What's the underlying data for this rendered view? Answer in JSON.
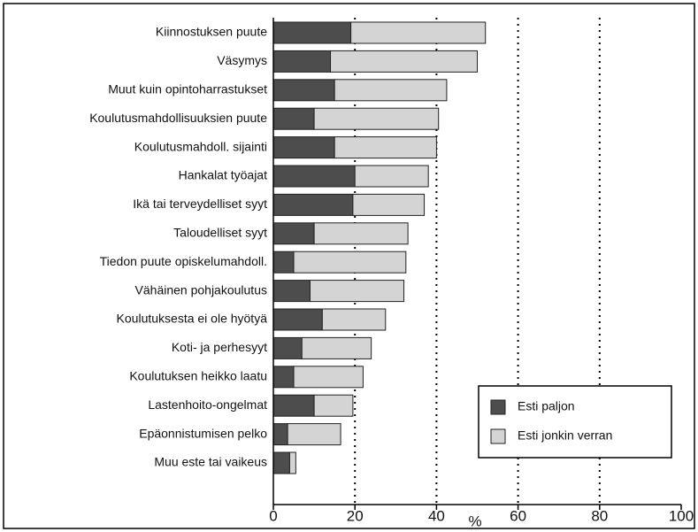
{
  "chart_data": {
    "type": "stacked_barh",
    "categories": [
      "Kiinnostuksen puute",
      "Väsymys",
      "Muut kuin opintoharrastukset",
      "Koulutusmahdollisuuksien puute",
      "Koulutusmahdoll. sijainti",
      "Hankalat työajat",
      "Ikä tai terveydelliset syyt",
      "Taloudelliset syyt",
      "Tiedon puute opiskelumahdoll.",
      "Vähäinen pohjakoulutus",
      "Koulutuksesta ei ole hyötyä",
      "Koti- ja perhesyyt",
      "Koulutuksen heikko laatu",
      "Lastenhoito-ongelmat",
      "Epäonnistumisen pelko",
      "Muu este tai vaikeus"
    ],
    "series": [
      {
        "name": "Esti paljon",
        "color": "#4d4d4d",
        "values": [
          19,
          14,
          15,
          10,
          15,
          20,
          19.5,
          10,
          5,
          9,
          12,
          7,
          5,
          10,
          3.5,
          4
        ]
      },
      {
        "name": "Esti jonkin verran",
        "color": "#d4d4d4",
        "values": [
          33,
          36,
          27.5,
          30.5,
          25,
          18,
          17.5,
          23,
          27.5,
          23,
          15.5,
          17,
          17,
          9.5,
          13,
          1.5
        ]
      }
    ],
    "xlabel": "%",
    "xlim": [
      0,
      100
    ],
    "xticks": [
      0,
      20,
      40,
      60,
      80,
      100
    ],
    "grid": true,
    "legend": "lower right"
  }
}
